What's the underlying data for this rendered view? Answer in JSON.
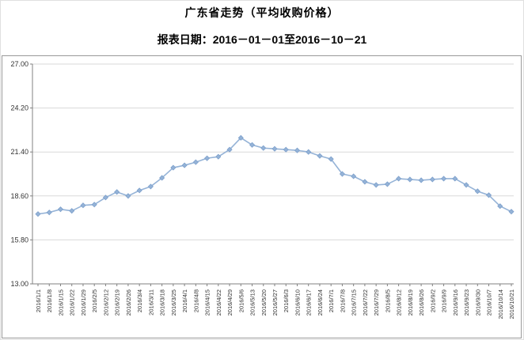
{
  "header": {
    "title": "广东省走势（平均收购价格）",
    "subtitle": "报表日期：2016－01－01至2016－10－21"
  },
  "chart_data": {
    "type": "line",
    "title": "广东省走势（平均收购价格）",
    "subtitle": "报表日期：2016－01－01至2016－10－21",
    "x": [
      "2016/1/1",
      "2016/1/8",
      "2016/1/15",
      "2016/1/22",
      "2016/1/29",
      "2016/2/5",
      "2016/2/12",
      "2016/2/19",
      "2016/2/26",
      "2016/3/4",
      "2016/3/11",
      "2016/3/18",
      "2016/3/25",
      "2016/4/1",
      "2016/4/8",
      "2016/4/15",
      "2016/4/22",
      "2016/4/29",
      "2016/5/6",
      "2016/5/13",
      "2016/5/20",
      "2016/5/27",
      "2016/6/3",
      "2016/6/10",
      "2016/6/17",
      "2016/6/24",
      "2016/7/1",
      "2016/7/8",
      "2016/7/15",
      "2016/7/22",
      "2016/7/29",
      "2016/8/5",
      "2016/8/12",
      "2016/8/19",
      "2016/8/26",
      "2016/9/2",
      "2016/9/9",
      "2016/9/16",
      "2016/9/23",
      "2016/9/30",
      "2016/10/7",
      "2016/10/14",
      "2016/10/21"
    ],
    "series": [
      {
        "name": "平均收购价格",
        "values": [
          17.45,
          17.55,
          17.75,
          17.65,
          18.0,
          18.05,
          18.5,
          18.85,
          18.6,
          18.95,
          19.2,
          19.75,
          20.4,
          20.55,
          20.75,
          21.0,
          21.1,
          21.55,
          22.3,
          21.85,
          21.65,
          21.6,
          21.55,
          21.5,
          21.4,
          21.15,
          20.95,
          20.0,
          19.85,
          19.5,
          19.3,
          19.35,
          19.7,
          19.65,
          19.6,
          19.65,
          19.7,
          19.7,
          19.3,
          18.9,
          18.65,
          17.95,
          17.6
        ]
      }
    ],
    "ylim": [
      13,
      27
    ],
    "yticks": [
      {
        "value": 13.0,
        "label": "13.00"
      },
      {
        "value": 15.8,
        "label": "15.80"
      },
      {
        "value": 18.6,
        "label": "18.60"
      },
      {
        "value": 21.4,
        "label": "21.40"
      },
      {
        "value": 24.2,
        "label": "24.20"
      },
      {
        "value": 27.0,
        "label": "27.00"
      }
    ],
    "grid": true,
    "legend": "none",
    "xlabel": "",
    "ylabel": "",
    "line_color": "#95B3D7",
    "marker": "diamond",
    "marker_fill": "#95B3D7",
    "marker_stroke": "#7DA0CC",
    "axis_color": "#808080",
    "grid_color": "#D9D9D9",
    "tick_label_color": "#333333"
  }
}
